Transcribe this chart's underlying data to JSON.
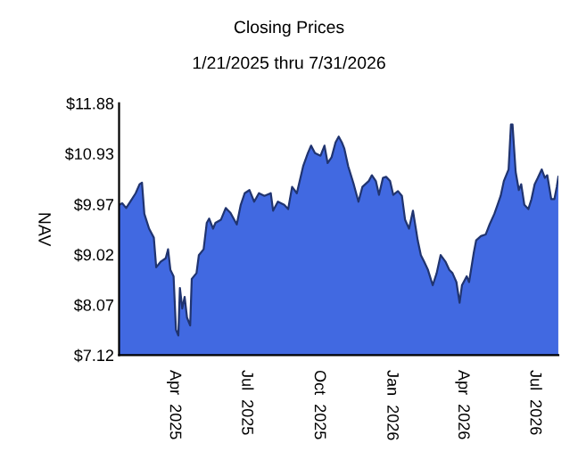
{
  "chart_data": {
    "type": "area",
    "title": "Closing Prices",
    "subtitle": "1/21/2025 thru 7/31/2026",
    "ylabel": "NAV",
    "x": [
      "2025-01-21",
      "2025-01-25",
      "2025-01-30",
      "2025-02-05",
      "2025-02-11",
      "2025-02-16",
      "2025-02-19",
      "2025-02-22",
      "2025-02-28",
      "2025-03-06",
      "2025-03-09",
      "2025-03-15",
      "2025-03-21",
      "2025-03-24",
      "2025-03-27",
      "2025-03-31",
      "2025-04-03",
      "2025-04-06",
      "2025-04-08",
      "2025-04-11",
      "2025-04-14",
      "2025-04-17",
      "2025-04-21",
      "2025-04-23",
      "2025-04-29",
      "2025-05-02",
      "2025-05-08",
      "2025-05-12",
      "2025-05-15",
      "2025-05-20",
      "2025-05-23",
      "2025-05-30",
      "2025-06-05",
      "2025-06-11",
      "2025-06-19",
      "2025-06-24",
      "2025-06-29",
      "2025-07-05",
      "2025-07-11",
      "2025-07-17",
      "2025-07-24",
      "2025-08-01",
      "2025-08-04",
      "2025-08-10",
      "2025-08-18",
      "2025-08-23",
      "2025-08-28",
      "2025-09-03",
      "2025-09-11",
      "2025-09-17",
      "2025-09-21",
      "2025-09-26",
      "2025-10-03",
      "2025-10-08",
      "2025-10-12",
      "2025-10-17",
      "2025-10-22",
      "2025-10-26",
      "2025-10-30",
      "2025-11-02",
      "2025-11-07",
      "2025-11-14",
      "2025-11-20",
      "2025-11-25",
      "2025-12-03",
      "2025-12-07",
      "2025-12-12",
      "2025-12-16",
      "2025-12-21",
      "2025-12-25",
      "2025-12-30",
      "2026-01-03",
      "2026-01-09",
      "2026-01-14",
      "2026-01-18",
      "2026-01-23",
      "2026-01-28",
      "2026-02-03",
      "2026-02-07",
      "2026-02-11",
      "2026-02-16",
      "2026-02-22",
      "2026-02-27",
      "2026-03-04",
      "2026-03-10",
      "2026-03-15",
      "2026-03-19",
      "2026-03-24",
      "2026-03-28",
      "2026-03-31",
      "2026-04-06",
      "2026-04-09",
      "2026-04-15",
      "2026-04-18",
      "2026-04-24",
      "2026-04-30",
      "2026-05-05",
      "2026-05-11",
      "2026-05-15",
      "2026-05-19",
      "2026-05-23",
      "2026-05-26",
      "2026-05-29",
      "2026-06-01",
      "2026-06-03",
      "2026-06-07",
      "2026-06-11",
      "2026-06-14",
      "2026-06-18",
      "2026-06-23",
      "2026-06-27",
      "2026-07-01",
      "2026-07-05",
      "2026-07-10",
      "2026-07-14",
      "2026-07-17",
      "2026-07-22",
      "2026-07-26",
      "2026-07-29",
      "2026-07-31"
    ],
    "series": [
      {
        "color": "#4169e1",
        "values": [
          9.96,
          9.99,
          9.9,
          10.04,
          10.18,
          10.35,
          10.38,
          9.79,
          9.51,
          9.34,
          8.78,
          8.89,
          8.95,
          9.12,
          8.73,
          8.61,
          7.6,
          7.49,
          8.39,
          8.0,
          8.22,
          7.83,
          7.68,
          8.56,
          8.67,
          9.01,
          9.12,
          9.62,
          9.7,
          9.51,
          9.62,
          9.68,
          9.9,
          9.81,
          9.59,
          9.96,
          10.18,
          10.24,
          10.02,
          10.18,
          10.13,
          10.18,
          9.85,
          10.02,
          9.96,
          9.88,
          10.3,
          10.18,
          10.69,
          10.94,
          11.08,
          10.94,
          10.89,
          11.08,
          10.75,
          10.86,
          11.14,
          11.25,
          11.14,
          11.03,
          10.69,
          10.35,
          10.02,
          10.3,
          10.41,
          10.52,
          10.41,
          10.15,
          10.47,
          10.49,
          10.41,
          10.15,
          10.22,
          10.13,
          9.68,
          9.51,
          9.85,
          9.29,
          9.01,
          8.89,
          8.73,
          8.44,
          8.67,
          9.01,
          8.89,
          8.73,
          8.67,
          8.5,
          8.11,
          8.44,
          8.61,
          8.5,
          9.06,
          9.29,
          9.37,
          9.4,
          9.59,
          9.79,
          9.96,
          10.13,
          10.41,
          10.52,
          10.63,
          11.48,
          11.48,
          10.58,
          10.24,
          10.35,
          9.96,
          9.88,
          10.07,
          10.35,
          10.47,
          10.63,
          10.47,
          10.52,
          10.07,
          10.07,
          10.3,
          10.49
        ]
      }
    ],
    "xlim": [
      "2025-01-21",
      "2026-07-31"
    ],
    "xticks": [
      {
        "value": "2025-04-01",
        "label": "Apr  2025"
      },
      {
        "value": "2025-07-01",
        "label": "Jul  2025"
      },
      {
        "value": "2025-10-01",
        "label": "Oct  2025"
      },
      {
        "value": "2026-01-01",
        "label": "Jan  2026"
      },
      {
        "value": "2026-04-01",
        "label": "Apr  2026"
      },
      {
        "value": "2026-07-01",
        "label": "Jul  2026"
      }
    ],
    "ylim": [
      7.12,
      11.88
    ],
    "yticks": [
      {
        "value": 7.12,
        "label": "$7.12"
      },
      {
        "value": 8.07,
        "label": "$8.07"
      },
      {
        "value": 9.02,
        "label": "$9.02"
      },
      {
        "value": 9.97,
        "label": "$9.97"
      },
      {
        "value": 10.93,
        "label": "$10.93"
      },
      {
        "value": 11.88,
        "label": "$11.88"
      }
    ],
    "grid": false,
    "legend": false
  }
}
